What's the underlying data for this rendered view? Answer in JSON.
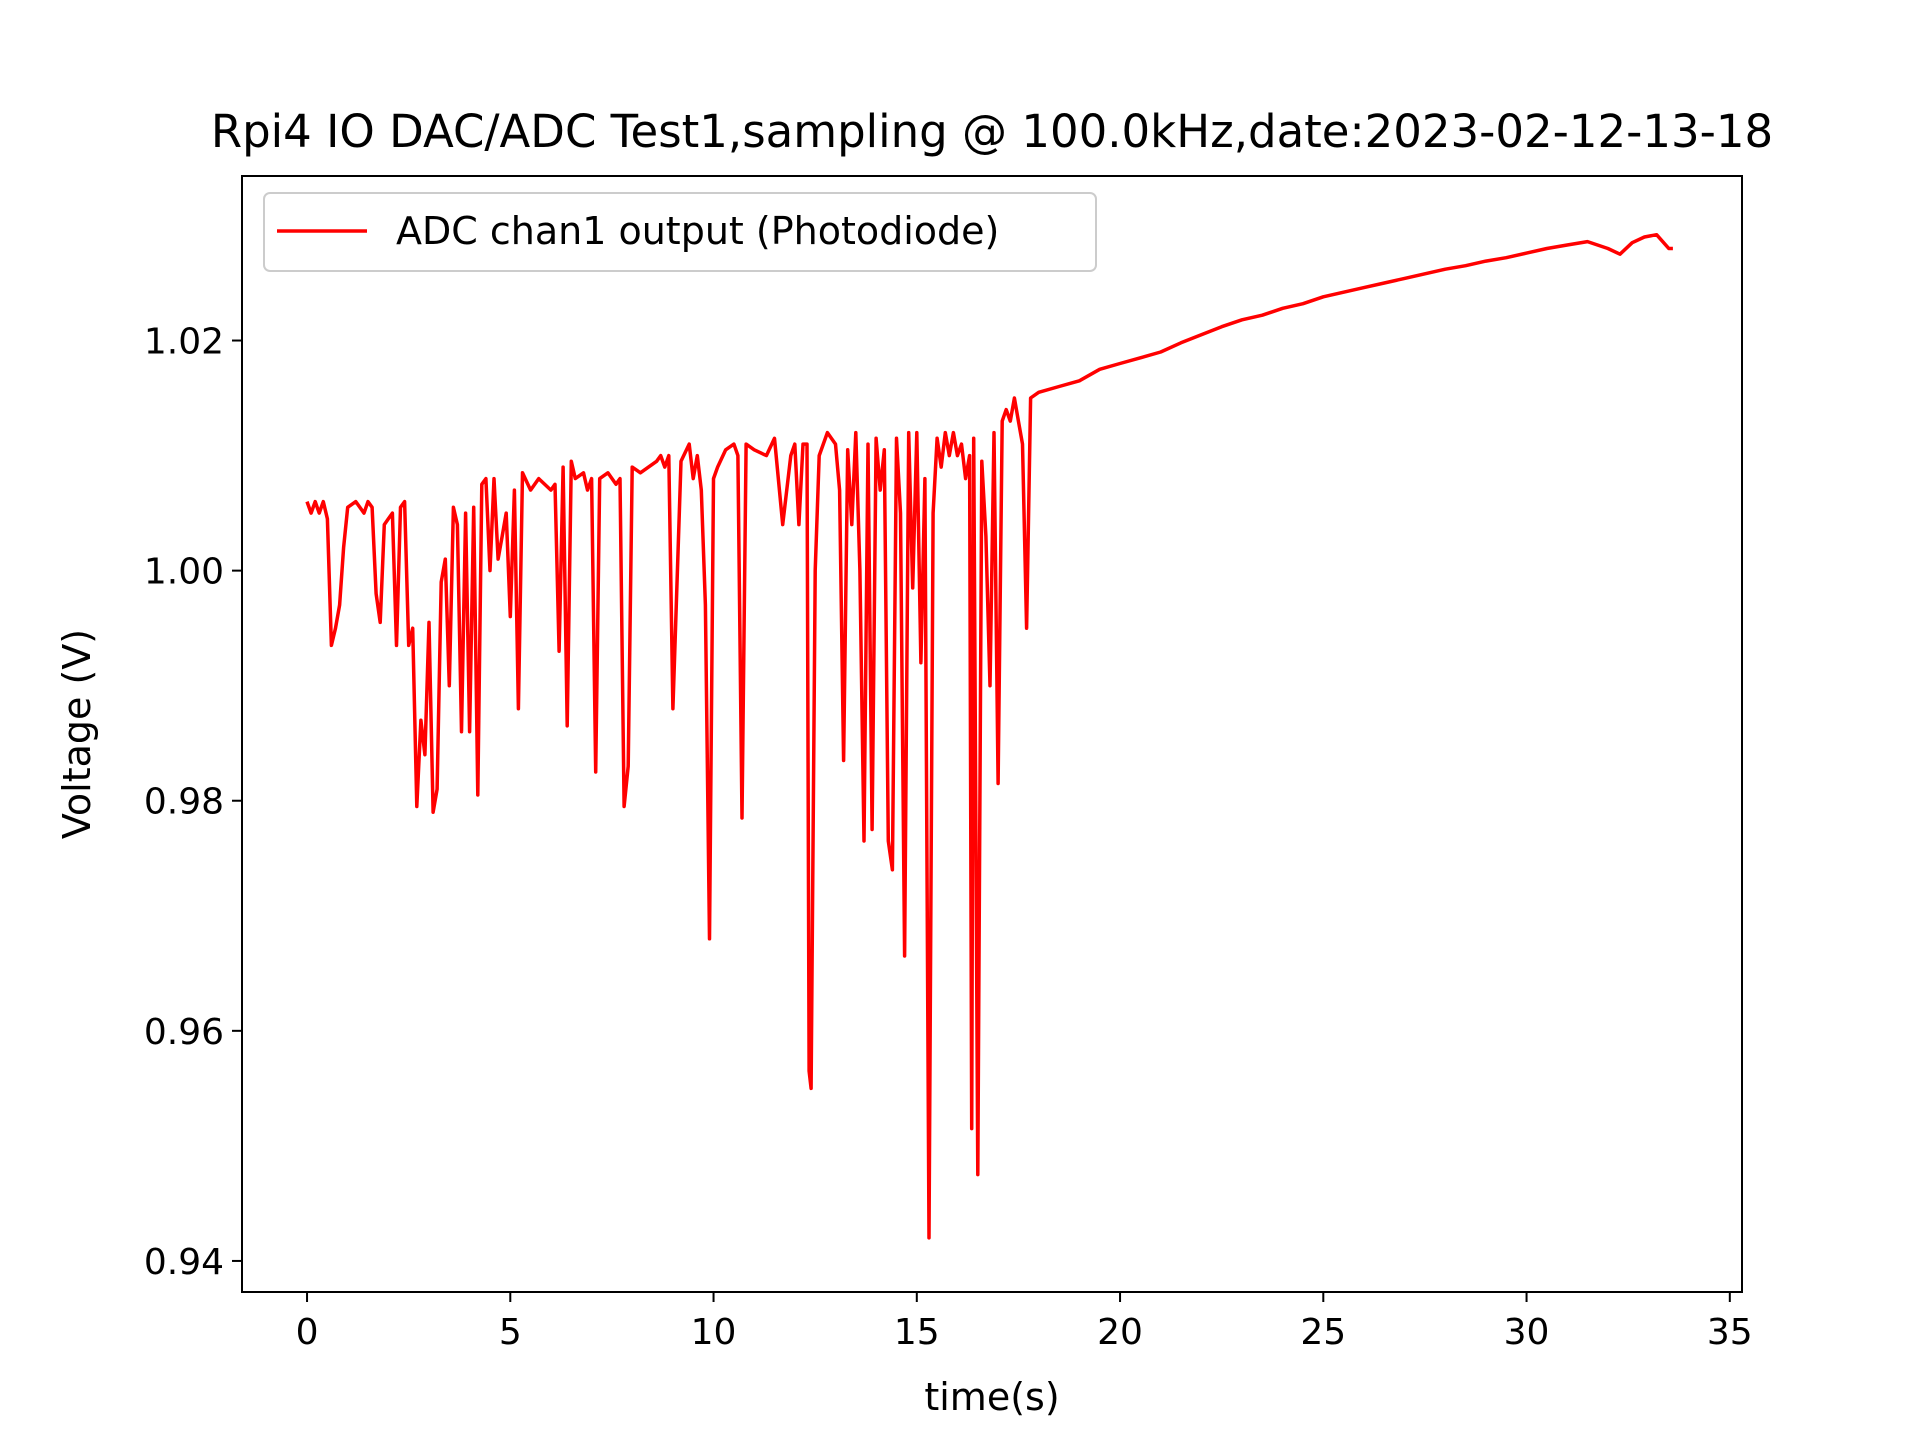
{
  "chart_data": {
    "type": "line",
    "title": "Rpi4 IO DAC/ADC Test1,sampling @ 100.0kHz,date:2023-02-12-13-18",
    "xlabel": "time(s)",
    "ylabel": "Voltage (V)",
    "xlim": [
      -1.6,
      35.3
    ],
    "ylim": [
      0.9373,
      1.0343
    ],
    "x_ticks": [
      0,
      5,
      10,
      15,
      20,
      25,
      30,
      35
    ],
    "x_tick_labels": [
      "0",
      "5",
      "10",
      "15",
      "20",
      "25",
      "30",
      "35"
    ],
    "y_ticks": [
      0.94,
      0.96,
      0.98,
      1.0,
      1.02
    ],
    "y_tick_labels": [
      "0.94",
      "0.96",
      "0.98",
      "1.00",
      "1.02"
    ],
    "grid": false,
    "legend_position": "upper-left",
    "series": [
      {
        "name": "ADC chan1 output  (Photodiode)",
        "color": "#ff0000",
        "x": [
          0.0,
          0.1,
          0.2,
          0.3,
          0.4,
          0.5,
          0.6,
          0.7,
          0.8,
          0.9,
          1.0,
          1.2,
          1.4,
          1.5,
          1.6,
          1.7,
          1.8,
          1.9,
          2.0,
          2.1,
          2.2,
          2.3,
          2.4,
          2.5,
          2.6,
          2.7,
          2.8,
          2.9,
          3.0,
          3.1,
          3.2,
          3.3,
          3.4,
          3.5,
          3.6,
          3.7,
          3.8,
          3.9,
          4.0,
          4.1,
          4.2,
          4.3,
          4.4,
          4.5,
          4.6,
          4.7,
          4.8,
          4.9,
          5.0,
          5.1,
          5.2,
          5.3,
          5.5,
          5.7,
          6.0,
          6.1,
          6.2,
          6.3,
          6.4,
          6.5,
          6.6,
          6.8,
          6.9,
          7.0,
          7.1,
          7.2,
          7.4,
          7.6,
          7.7,
          7.8,
          7.9,
          8.0,
          8.2,
          8.4,
          8.6,
          8.7,
          8.8,
          8.9,
          9.0,
          9.2,
          9.4,
          9.5,
          9.6,
          9.7,
          9.8,
          9.9,
          10.0,
          10.1,
          10.3,
          10.5,
          10.6,
          10.7,
          10.8,
          11.0,
          11.3,
          11.5,
          11.7,
          11.9,
          12.0,
          12.1,
          12.2,
          12.3,
          12.35,
          12.4,
          12.5,
          12.6,
          12.8,
          13.0,
          13.1,
          13.2,
          13.3,
          13.4,
          13.5,
          13.6,
          13.7,
          13.8,
          13.9,
          14.0,
          14.1,
          14.2,
          14.3,
          14.4,
          14.5,
          14.6,
          14.7,
          14.8,
          14.9,
          15.0,
          15.1,
          15.2,
          15.3,
          15.4,
          15.5,
          15.6,
          15.7,
          15.8,
          15.9,
          16.0,
          16.1,
          16.2,
          16.3,
          16.35,
          16.4,
          16.5,
          16.6,
          16.7,
          16.8,
          16.9,
          17.0,
          17.1,
          17.2,
          17.3,
          17.4,
          17.5,
          17.6,
          17.7,
          17.8,
          18.0,
          18.5,
          19.0,
          19.5,
          20.0,
          20.5,
          21.0,
          21.5,
          22.0,
          22.5,
          23.0,
          23.5,
          24.0,
          24.5,
          25.0,
          25.5,
          26.0,
          26.5,
          27.0,
          27.5,
          28.0,
          28.5,
          29.0,
          29.5,
          30.0,
          30.5,
          31.0,
          31.5,
          32.0,
          32.3,
          32.6,
          32.9,
          33.2,
          33.5,
          33.6
        ],
        "y": [
          1.006,
          1.005,
          1.006,
          1.005,
          1.006,
          1.0045,
          0.9935,
          0.995,
          0.997,
          1.002,
          1.0055,
          1.006,
          1.005,
          1.006,
          1.0055,
          0.998,
          0.9955,
          1.004,
          1.0045,
          1.005,
          0.9935,
          1.0055,
          1.006,
          0.9935,
          0.995,
          0.9795,
          0.987,
          0.984,
          0.9955,
          0.979,
          0.981,
          0.999,
          1.001,
          0.99,
          1.0055,
          1.004,
          0.986,
          1.005,
          0.986,
          1.0055,
          0.9805,
          1.0075,
          1.008,
          1.0,
          1.008,
          1.001,
          1.003,
          1.005,
          0.996,
          1.007,
          0.988,
          1.0085,
          1.007,
          1.008,
          1.007,
          1.0075,
          0.993,
          1.009,
          0.9865,
          1.0095,
          1.008,
          1.0085,
          1.007,
          1.008,
          0.9825,
          1.008,
          1.0085,
          1.0075,
          1.008,
          0.9795,
          0.983,
          1.009,
          1.0085,
          1.009,
          1.0095,
          1.01,
          1.009,
          1.01,
          0.988,
          1.0095,
          1.011,
          1.008,
          1.01,
          1.007,
          0.997,
          0.968,
          1.008,
          1.009,
          1.0105,
          1.011,
          1.01,
          0.9785,
          1.011,
          1.0105,
          1.01,
          1.0115,
          1.004,
          1.01,
          1.011,
          1.004,
          1.011,
          1.011,
          0.9565,
          0.955,
          1.0,
          1.01,
          1.012,
          1.011,
          1.007,
          0.9835,
          1.0105,
          1.004,
          1.012,
          1.0,
          0.9765,
          1.011,
          0.9775,
          1.0115,
          1.007,
          1.0105,
          0.9765,
          0.974,
          1.0115,
          1.005,
          0.9665,
          1.012,
          0.9985,
          1.012,
          0.992,
          1.008,
          0.942,
          1.005,
          1.0115,
          1.009,
          1.012,
          1.01,
          1.012,
          1.01,
          1.011,
          1.008,
          1.01,
          0.9515,
          1.0115,
          0.9475,
          1.0095,
          1.003,
          0.99,
          1.012,
          0.9815,
          1.013,
          1.014,
          1.013,
          1.015,
          1.013,
          1.011,
          0.995,
          1.015,
          1.0155,
          1.016,
          1.0165,
          1.0175,
          1.018,
          1.0185,
          1.019,
          1.0198,
          1.0205,
          1.0212,
          1.0218,
          1.0222,
          1.0228,
          1.0232,
          1.0238,
          1.0242,
          1.0246,
          1.025,
          1.0254,
          1.0258,
          1.0262,
          1.0265,
          1.0269,
          1.0272,
          1.0276,
          1.028,
          1.0283,
          1.0286,
          1.028,
          1.0275,
          1.0285,
          1.029,
          1.0292,
          1.028,
          1.028
        ]
      }
    ]
  }
}
